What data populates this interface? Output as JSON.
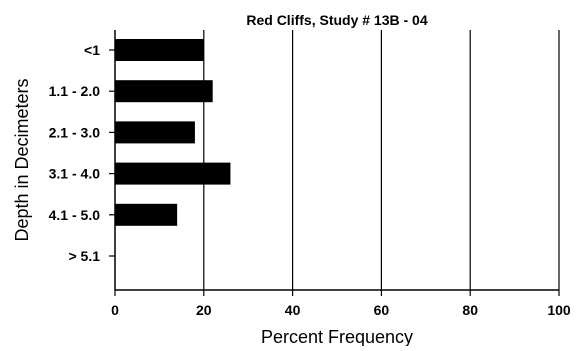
{
  "chart_data": {
    "type": "bar",
    "orientation": "horizontal",
    "title": "Red Cliffs, Study # 13B - 04",
    "xlabel": "Percent Frequency",
    "ylabel": "Depth in Decimeters",
    "categories": [
      "<1",
      "1.1 - 2.0",
      "2.1 - 3.0",
      "3.1 - 4.0",
      "4.1 - 5.0",
      "> 5.1"
    ],
    "values": [
      20,
      22,
      18,
      26,
      14,
      0
    ],
    "xlim": [
      0,
      100
    ],
    "xticks": [
      0,
      20,
      40,
      60,
      80,
      100
    ],
    "grid": "vertical",
    "bar_color": "#000000",
    "legend": "none"
  }
}
